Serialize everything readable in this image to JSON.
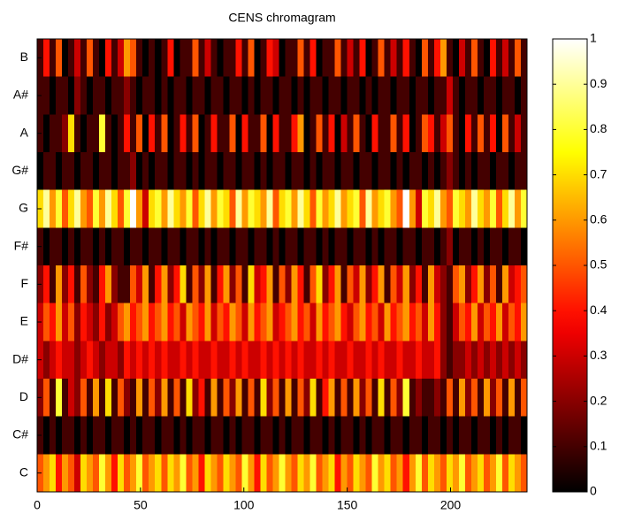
{
  "chart_data": {
    "type": "heatmap",
    "title": "CENS chromagram",
    "colormap": "hot",
    "clim": [
      0,
      1
    ],
    "cticks": [
      0,
      0.1,
      0.2,
      0.3,
      0.4,
      0.5,
      0.6,
      0.7,
      0.8,
      0.9,
      1
    ],
    "xlim": [
      0,
      237
    ],
    "xticks": [
      0,
      50,
      100,
      150,
      200
    ],
    "x": [
      1.5,
      4.5,
      7.5,
      10.5,
      13.5,
      16.5,
      19.5,
      22.5,
      25.5,
      28.5,
      31.5,
      34.5,
      37.5,
      40.5,
      43.5,
      46.5,
      49.5,
      52.5,
      55.5,
      58.5,
      61.5,
      64.5,
      67.5,
      70.5,
      73.5,
      76.5,
      79.5,
      82.5,
      85.5,
      88.5,
      91.5,
      94.5,
      97.5,
      100.5,
      103.5,
      106.5,
      109.5,
      112.5,
      115.5,
      118.5,
      121.5,
      124.5,
      127.5,
      130.5,
      133.5,
      136.5,
      139.5,
      142.5,
      145.5,
      148.5,
      151.5,
      154.5,
      157.5,
      160.5,
      163.5,
      166.5,
      169.5,
      172.5,
      175.5,
      178.5,
      181.5,
      184.5,
      187.5,
      190.5,
      193.5,
      196.5,
      199.5,
      202.5,
      205.5,
      208.5,
      211.5,
      214.5,
      217.5,
      220.5,
      223.5,
      226.5,
      229.5,
      232.5,
      235.5
    ],
    "series": [
      {
        "name": "B",
        "values": [
          0.1,
          0.4,
          0.1,
          0.5,
          0.0,
          0.1,
          0.3,
          0.1,
          0.5,
          0.1,
          0.0,
          0.4,
          0.1,
          0.3,
          0.6,
          0.5,
          0.1,
          0.0,
          0.1,
          0.0,
          0.1,
          0.4,
          0.0,
          0.1,
          0.1,
          0.5,
          0.1,
          0.3,
          0.1,
          0.0,
          0.1,
          0.1,
          0.4,
          0.1,
          0.5,
          0.0,
          0.1,
          0.4,
          0.3,
          0.0,
          0.1,
          0.1,
          0.5,
          0.1,
          0.4,
          0.0,
          0.1,
          0.1,
          0.5,
          0.1,
          0.3,
          0.1,
          0.4,
          0.0,
          0.1,
          0.5,
          0.1,
          0.3,
          0.1,
          0.4,
          0.1,
          0.0,
          0.5,
          0.1,
          0.4,
          0.6,
          0.1,
          0.0,
          0.3,
          0.1,
          0.5,
          0.1,
          0.0,
          0.4,
          0.1,
          0.3,
          0.1,
          0.5,
          0.1
        ]
      },
      {
        "name": "A#",
        "values": [
          0.1,
          0.1,
          0.0,
          0.1,
          0.1,
          0.0,
          0.2,
          0.1,
          0.0,
          0.1,
          0.1,
          0.0,
          0.1,
          0.1,
          0.2,
          0.1,
          0.0,
          0.1,
          0.1,
          0.0,
          0.1,
          0.0,
          0.1,
          0.1,
          0.0,
          0.1,
          0.1,
          0.0,
          0.1,
          0.1,
          0.0,
          0.1,
          0.1,
          0.0,
          0.1,
          0.0,
          0.1,
          0.1,
          0.0,
          0.1,
          0.1,
          0.0,
          0.1,
          0.0,
          0.1,
          0.1,
          0.0,
          0.1,
          0.1,
          0.0,
          0.1,
          0.1,
          0.0,
          0.1,
          0.0,
          0.1,
          0.1,
          0.0,
          0.1,
          0.1,
          0.0,
          0.1,
          0.1,
          0.0,
          0.1,
          0.1,
          0.3,
          0.1,
          0.0,
          0.1,
          0.1,
          0.0,
          0.1,
          0.1,
          0.0,
          0.1,
          0.1,
          0.0,
          0.1
        ]
      },
      {
        "name": "A",
        "values": [
          0.1,
          0.0,
          0.1,
          0.1,
          0.2,
          0.7,
          0.1,
          0.0,
          0.1,
          0.1,
          0.8,
          0.1,
          0.0,
          0.1,
          0.4,
          0.1,
          0.5,
          0.0,
          0.4,
          0.1,
          0.5,
          0.0,
          0.1,
          0.4,
          0.1,
          0.5,
          0.0,
          0.1,
          0.4,
          0.1,
          0.1,
          0.5,
          0.0,
          0.4,
          0.1,
          0.1,
          0.5,
          0.0,
          0.4,
          0.1,
          0.1,
          0.4,
          0.6,
          0.0,
          0.1,
          0.5,
          0.1,
          0.4,
          0.0,
          0.3,
          0.1,
          0.5,
          0.1,
          0.0,
          0.4,
          0.1,
          0.1,
          0.5,
          0.1,
          0.4,
          0.0,
          0.1,
          0.5,
          0.4,
          0.1,
          0.3,
          0.5,
          0.1,
          0.0,
          0.4,
          0.1,
          0.5,
          0.1,
          0.4,
          0.0,
          0.5,
          0.1,
          0.3,
          0.1
        ]
      },
      {
        "name": "G#",
        "values": [
          0.0,
          0.1,
          0.1,
          0.0,
          0.1,
          0.1,
          0.0,
          0.1,
          0.1,
          0.0,
          0.1,
          0.1,
          0.0,
          0.1,
          0.1,
          0.2,
          0.0,
          0.1,
          0.0,
          0.1,
          0.1,
          0.0,
          0.1,
          0.1,
          0.0,
          0.1,
          0.0,
          0.1,
          0.1,
          0.0,
          0.1,
          0.1,
          0.0,
          0.1,
          0.1,
          0.0,
          0.1,
          0.0,
          0.1,
          0.1,
          0.0,
          0.1,
          0.1,
          0.0,
          0.1,
          0.0,
          0.1,
          0.1,
          0.0,
          0.1,
          0.1,
          0.0,
          0.1,
          0.1,
          0.0,
          0.1,
          0.1,
          0.0,
          0.1,
          0.0,
          0.1,
          0.1,
          0.0,
          0.1,
          0.0,
          0.1,
          0.2,
          0.1,
          0.0,
          0.1,
          0.0,
          0.1,
          0.1,
          0.0,
          0.1,
          0.1,
          0.0,
          0.1,
          0.1
        ]
      },
      {
        "name": "G",
        "values": [
          0.7,
          0.9,
          0.6,
          0.8,
          0.5,
          0.7,
          0.9,
          0.6,
          0.5,
          0.8,
          0.6,
          0.9,
          0.7,
          0.5,
          0.8,
          1.0,
          0.6,
          0.3,
          0.7,
          0.8,
          0.6,
          0.9,
          0.7,
          0.6,
          0.8,
          0.5,
          0.7,
          0.9,
          0.6,
          0.8,
          0.7,
          0.5,
          0.9,
          0.6,
          0.8,
          0.7,
          0.6,
          0.9,
          0.5,
          0.7,
          0.8,
          0.6,
          0.9,
          0.7,
          0.5,
          0.8,
          0.6,
          0.7,
          0.9,
          0.6,
          0.7,
          0.8,
          0.5,
          0.9,
          0.6,
          0.7,
          0.8,
          0.6,
          0.5,
          1.0,
          0.6,
          0.3,
          0.8,
          0.7,
          0.9,
          0.6,
          0.5,
          0.8,
          0.7,
          0.6,
          0.9,
          0.7,
          0.6,
          0.8,
          0.5,
          0.7,
          0.9,
          0.6,
          0.8
        ]
      },
      {
        "name": "F#",
        "values": [
          0.1,
          0.0,
          0.1,
          0.1,
          0.0,
          0.1,
          0.0,
          0.1,
          0.1,
          0.0,
          0.1,
          0.0,
          0.1,
          0.1,
          0.0,
          0.1,
          0.1,
          0.0,
          0.1,
          0.1,
          0.0,
          0.1,
          0.1,
          0.0,
          0.1,
          0.1,
          0.0,
          0.1,
          0.0,
          0.1,
          0.1,
          0.0,
          0.1,
          0.1,
          0.0,
          0.1,
          0.1,
          0.0,
          0.1,
          0.0,
          0.1,
          0.1,
          0.0,
          0.1,
          0.1,
          0.0,
          0.1,
          0.0,
          0.1,
          0.1,
          0.0,
          0.1,
          0.1,
          0.0,
          0.1,
          0.0,
          0.1,
          0.1,
          0.0,
          0.1,
          0.1,
          0.0,
          0.1,
          0.1,
          0.0,
          0.1,
          0.2,
          0.0,
          0.1,
          0.1,
          0.0,
          0.1,
          0.0,
          0.1,
          0.1,
          0.0,
          0.1,
          0.1,
          0.0
        ]
      },
      {
        "name": "F",
        "values": [
          0.2,
          0.4,
          0.1,
          0.6,
          0.2,
          0.4,
          0.1,
          0.5,
          0.2,
          0.1,
          0.4,
          0.6,
          0.2,
          0.1,
          0.1,
          0.5,
          0.3,
          0.6,
          0.1,
          0.4,
          0.6,
          0.2,
          0.4,
          0.7,
          0.1,
          0.5,
          0.2,
          0.6,
          0.1,
          0.4,
          0.6,
          0.2,
          0.5,
          0.1,
          0.7,
          0.3,
          0.4,
          0.6,
          0.1,
          0.5,
          0.2,
          0.6,
          0.4,
          0.1,
          0.5,
          0.7,
          0.2,
          0.4,
          0.6,
          0.1,
          0.5,
          0.3,
          0.6,
          0.2,
          0.4,
          0.6,
          0.1,
          0.5,
          0.3,
          0.6,
          0.2,
          0.4,
          0.1,
          0.6,
          0.3,
          0.2,
          0.1,
          0.5,
          0.6,
          0.2,
          0.4,
          0.6,
          0.2,
          0.5,
          0.1,
          0.6,
          0.3,
          0.4,
          0.5
        ]
      },
      {
        "name": "E",
        "values": [
          0.3,
          0.5,
          0.4,
          0.6,
          0.3,
          0.5,
          0.2,
          0.4,
          0.3,
          0.2,
          0.4,
          0.2,
          0.3,
          0.5,
          0.6,
          0.4,
          0.5,
          0.6,
          0.4,
          0.5,
          0.6,
          0.4,
          0.5,
          0.3,
          0.6,
          0.5,
          0.4,
          0.6,
          0.3,
          0.5,
          0.4,
          0.6,
          0.5,
          0.3,
          0.6,
          0.4,
          0.5,
          0.6,
          0.3,
          0.4,
          0.5,
          0.6,
          0.4,
          0.5,
          0.3,
          0.6,
          0.4,
          0.5,
          0.6,
          0.4,
          0.3,
          0.5,
          0.6,
          0.4,
          0.5,
          0.3,
          0.6,
          0.4,
          0.5,
          0.6,
          0.4,
          0.5,
          0.3,
          0.6,
          0.4,
          0.2,
          0.1,
          0.3,
          0.5,
          0.4,
          0.6,
          0.3,
          0.5,
          0.4,
          0.6,
          0.3,
          0.5,
          0.4,
          0.6
        ]
      },
      {
        "name": "D#",
        "values": [
          0.3,
          0.2,
          0.3,
          0.4,
          0.3,
          0.3,
          0.2,
          0.3,
          0.4,
          0.3,
          0.2,
          0.3,
          0.3,
          0.2,
          0.4,
          0.3,
          0.4,
          0.3,
          0.4,
          0.3,
          0.4,
          0.3,
          0.3,
          0.4,
          0.3,
          0.4,
          0.3,
          0.3,
          0.4,
          0.3,
          0.3,
          0.4,
          0.3,
          0.4,
          0.3,
          0.3,
          0.4,
          0.3,
          0.4,
          0.3,
          0.4,
          0.3,
          0.4,
          0.3,
          0.3,
          0.4,
          0.3,
          0.4,
          0.3,
          0.3,
          0.4,
          0.3,
          0.3,
          0.4,
          0.3,
          0.4,
          0.3,
          0.3,
          0.4,
          0.3,
          0.3,
          0.4,
          0.3,
          0.3,
          0.4,
          0.2,
          0.1,
          0.2,
          0.2,
          0.3,
          0.2,
          0.3,
          0.2,
          0.3,
          0.2,
          0.3,
          0.2,
          0.3,
          0.2
        ]
      },
      {
        "name": "D",
        "values": [
          0.2,
          0.5,
          0.1,
          0.8,
          0.1,
          0.3,
          0.2,
          0.5,
          0.1,
          0.6,
          0.1,
          0.7,
          0.1,
          0.5,
          0.2,
          0.1,
          0.6,
          0.1,
          0.5,
          0.2,
          0.6,
          0.1,
          0.5,
          0.1,
          0.7,
          0.2,
          0.4,
          0.1,
          0.6,
          0.1,
          0.5,
          0.2,
          0.6,
          0.1,
          0.5,
          0.1,
          0.7,
          0.2,
          0.5,
          0.1,
          0.6,
          0.1,
          0.5,
          0.2,
          0.7,
          0.1,
          0.4,
          0.6,
          0.1,
          0.5,
          0.1,
          0.6,
          0.2,
          0.5,
          0.1,
          0.7,
          0.1,
          0.5,
          0.2,
          0.8,
          0.1,
          0.2,
          0.1,
          0.1,
          0.2,
          0.1,
          0.5,
          0.1,
          0.6,
          0.2,
          0.5,
          0.1,
          0.6,
          0.2,
          0.5,
          0.1,
          0.6,
          0.1,
          0.5
        ]
      },
      {
        "name": "C#",
        "values": [
          0.1,
          0.0,
          0.1,
          0.0,
          0.1,
          0.1,
          0.0,
          0.1,
          0.0,
          0.1,
          0.1,
          0.0,
          0.1,
          0.1,
          0.0,
          0.1,
          0.0,
          0.1,
          0.1,
          0.0,
          0.1,
          0.1,
          0.0,
          0.1,
          0.0,
          0.1,
          0.1,
          0.0,
          0.1,
          0.1,
          0.0,
          0.1,
          0.0,
          0.1,
          0.1,
          0.0,
          0.1,
          0.1,
          0.0,
          0.1,
          0.0,
          0.1,
          0.1,
          0.0,
          0.1,
          0.1,
          0.0,
          0.1,
          0.0,
          0.1,
          0.1,
          0.0,
          0.1,
          0.0,
          0.1,
          0.1,
          0.0,
          0.1,
          0.1,
          0.0,
          0.1,
          0.1,
          0.0,
          0.1,
          0.1,
          0.0,
          0.1,
          0.0,
          0.1,
          0.1,
          0.0,
          0.1,
          0.1,
          0.0,
          0.1,
          0.0,
          0.1,
          0.1,
          0.0
        ]
      },
      {
        "name": "C",
        "values": [
          0.5,
          0.6,
          0.7,
          0.4,
          0.6,
          0.5,
          0.3,
          0.7,
          0.6,
          0.5,
          0.8,
          0.6,
          0.4,
          0.7,
          0.5,
          0.6,
          0.8,
          0.5,
          0.6,
          0.7,
          0.5,
          0.7,
          0.6,
          0.8,
          0.5,
          0.6,
          0.4,
          0.7,
          0.6,
          0.5,
          0.7,
          0.6,
          0.5,
          0.8,
          0.6,
          0.4,
          0.7,
          0.5,
          0.6,
          0.8,
          0.6,
          0.5,
          0.7,
          0.6,
          0.8,
          0.5,
          0.6,
          0.7,
          0.4,
          0.6,
          0.5,
          0.7,
          0.6,
          0.5,
          0.8,
          0.6,
          0.7,
          0.5,
          0.6,
          0.4,
          0.6,
          0.8,
          0.5,
          0.7,
          0.6,
          0.5,
          0.7,
          0.6,
          0.8,
          0.5,
          0.6,
          0.7,
          0.5,
          0.6,
          0.8,
          0.5,
          0.7,
          0.6,
          0.5
        ]
      }
    ]
  }
}
